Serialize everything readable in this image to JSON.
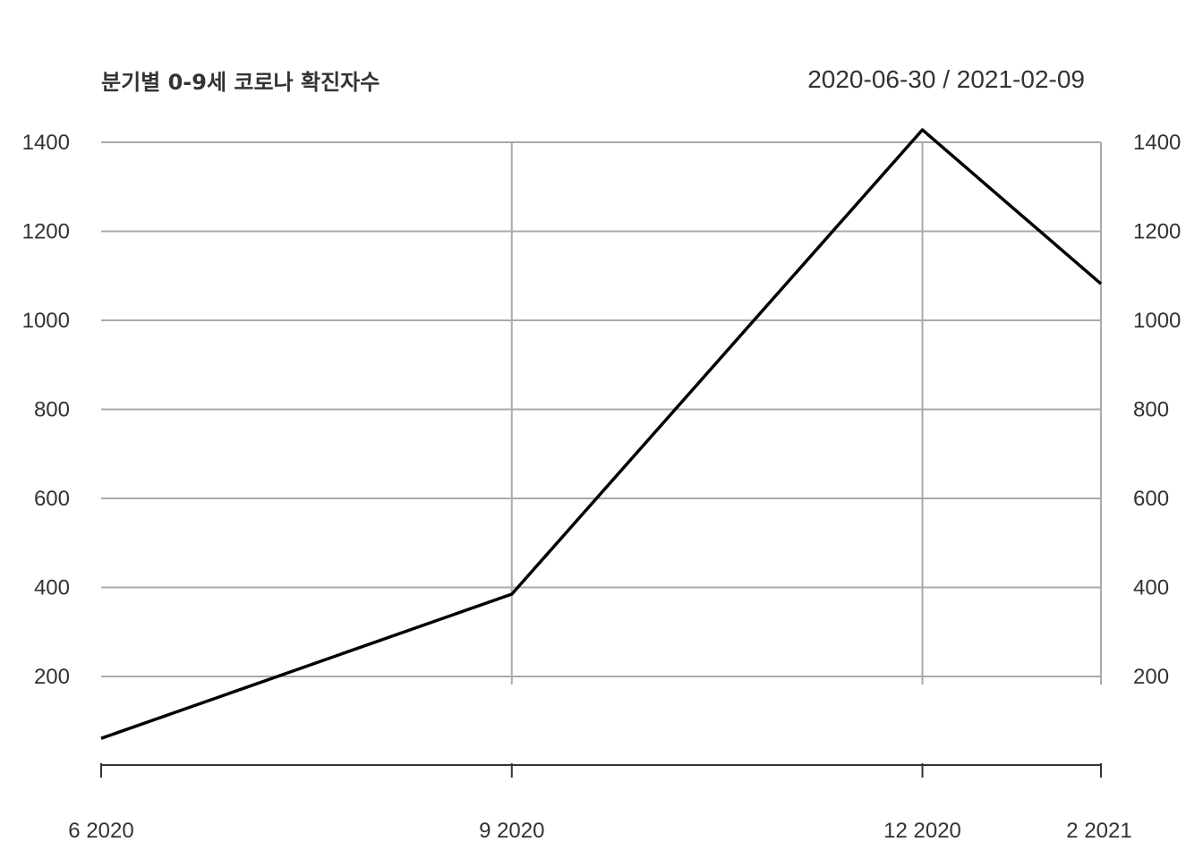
{
  "chart_data": {
    "type": "line",
    "title": "분기별 0-9세 코로나 확진자수",
    "date_range": "2020-06-30 / 2021-02-09",
    "x": [
      "2020-06-30",
      "2020-09-30",
      "2020-12-31",
      "2021-02-09"
    ],
    "x_tick_labels": [
      "6 2020",
      "9 2020",
      "12 2020",
      "2 2021"
    ],
    "values": [
      61,
      385,
      1428,
      1082
    ],
    "ylim": [
      0,
      1430
    ],
    "y_ticks": [
      200,
      400,
      600,
      800,
      1000,
      1200,
      1400
    ],
    "xlabel": "",
    "ylabel": "",
    "grid": true,
    "line_color": "#000000",
    "grid_color": "#aaaaaa",
    "text_color": "#333333"
  }
}
